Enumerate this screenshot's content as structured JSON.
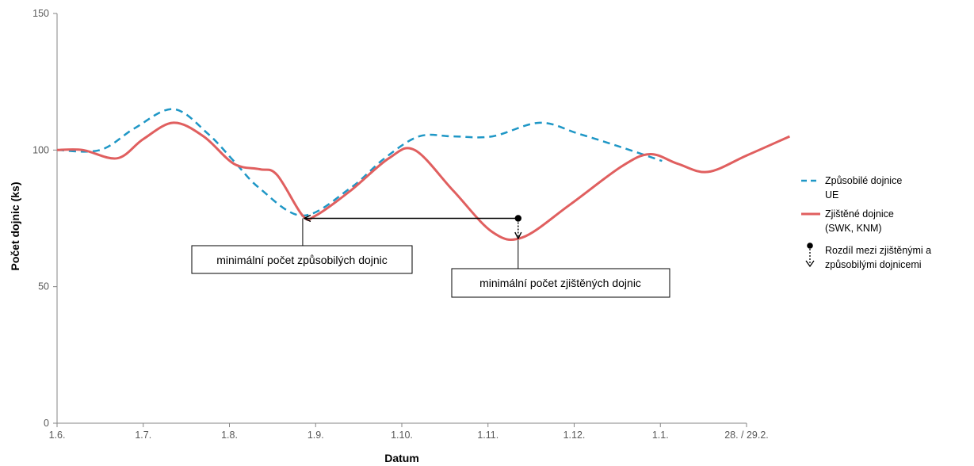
{
  "chart_data": {
    "type": "line",
    "xlabel": "Datum",
    "ylabel": "Počet dojnic (ks)",
    "categories": [
      "1.6.",
      "1.7.",
      "1.8.",
      "1.9.",
      "1.10.",
      "1.11.",
      "1.12.",
      "1.1.",
      "28. / 29.2."
    ],
    "ylim": [
      0,
      150
    ],
    "yticks": [
      0,
      50,
      100,
      150
    ],
    "grid": false,
    "legend_position": "right",
    "series": [
      {
        "name": "Způsobilé dojnice UE",
        "style": "dashed",
        "color": "#1f97c6",
        "points": [
          [
            0,
            100
          ],
          [
            0.5,
            100
          ],
          [
            0.9,
            108
          ],
          [
            1.35,
            115
          ],
          [
            1.75,
            106
          ],
          [
            2.05,
            96
          ],
          [
            2.35,
            86
          ],
          [
            2.85,
            76
          ],
          [
            3.4,
            86
          ],
          [
            3.8,
            97
          ],
          [
            4.2,
            105
          ],
          [
            4.6,
            105
          ],
          [
            5.05,
            105
          ],
          [
            5.6,
            110
          ],
          [
            6.05,
            106
          ],
          [
            6.55,
            101
          ],
          [
            7.02,
            96
          ]
        ]
      },
      {
        "name": "Zjištěné dojnice (SWK, KNM)",
        "style": "solid",
        "color": "#e05f5f",
        "points": [
          [
            0,
            100
          ],
          [
            0.3,
            100
          ],
          [
            0.7,
            97
          ],
          [
            1.0,
            104
          ],
          [
            1.35,
            110
          ],
          [
            1.7,
            105
          ],
          [
            2.05,
            95
          ],
          [
            2.35,
            93
          ],
          [
            2.55,
            91
          ],
          [
            2.85,
            76
          ],
          [
            3.0,
            76
          ],
          [
            3.4,
            85
          ],
          [
            3.85,
            97
          ],
          [
            4.15,
            100
          ],
          [
            4.6,
            85
          ],
          [
            5.05,
            70
          ],
          [
            5.4,
            68
          ],
          [
            5.95,
            80
          ],
          [
            6.55,
            94
          ],
          [
            6.88,
            98.5
          ],
          [
            7.2,
            95
          ],
          [
            7.55,
            92
          ],
          [
            8.0,
            98
          ],
          [
            8.5,
            105
          ]
        ]
      }
    ],
    "difference_marker": {
      "label": "Rozdíl mezi zjištěnými a způsobilými dojnicemi",
      "x": 5.35,
      "y_from": 75,
      "y_to": 67,
      "color": "#000000"
    },
    "annotations": [
      {
        "text": "minimální  počet způsobilých dojnic",
        "x": 2.85,
        "y": 75
      },
      {
        "text": "minimální  počet zjištěných dojnic",
        "x": 5.35,
        "y": 67
      }
    ],
    "arrow": {
      "from": [
        5.35,
        75
      ],
      "to": [
        2.85,
        75
      ]
    },
    "legend": [
      {
        "lines": [
          "Způsobilé dojnice",
          "UE"
        ]
      },
      {
        "lines": [
          "Zjištěné dojnice",
          "(SWK, KNM)"
        ]
      },
      {
        "lines": [
          "Rozdíl mezi zjištěnými a",
          "způsobilými dojnicemi"
        ]
      }
    ]
  }
}
